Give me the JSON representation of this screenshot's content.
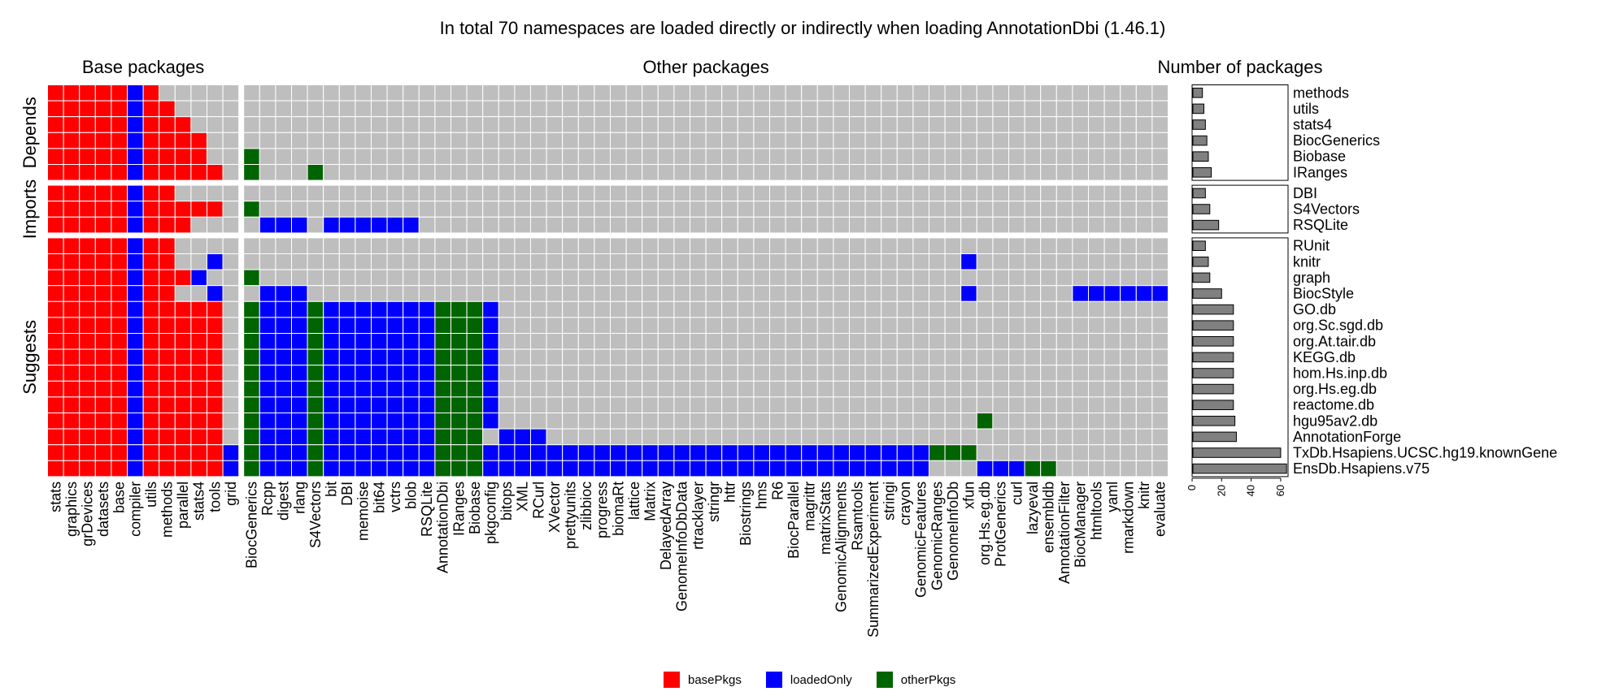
{
  "chart_data": {
    "type": "heatmap",
    "title": "In total 70 namespaces are loaded directly or indirectly when loading AnnotationDbi (1.46.1)",
    "panel_titles": {
      "base": "Base packages",
      "other": "Other packages",
      "bar": "Number of packages"
    },
    "groups": [
      {
        "name": "Depends",
        "rows": [
          "methods",
          "utils",
          "stats4",
          "BiocGenerics",
          "Biobase",
          "IRanges"
        ]
      },
      {
        "name": "Imports",
        "rows": [
          "DBI",
          "S4Vectors",
          "RSQLite"
        ]
      },
      {
        "name": "Suggests",
        "rows": [
          "RUnit",
          "knitr",
          "graph",
          "BiocStyle",
          "GO.db",
          "org.Sc.sgd.db",
          "org.At.tair.db",
          "KEGG.db",
          "hom.Hs.inp.db",
          "org.Hs.eg.db",
          "reactome.db",
          "hgu95av2.db",
          "AnnotationForge",
          "TxDb.Hsapiens.UCSC.hg19.knownGene",
          "EnsDb.Hsapiens.v75"
        ]
      }
    ],
    "base_columns": [
      "stats",
      "graphics",
      "grDevices",
      "datasets",
      "base",
      "compiler",
      "utils",
      "methods",
      "parallel",
      "stats4",
      "tools",
      "grid"
    ],
    "other_columns": [
      "BiocGenerics",
      "Rcpp",
      "digest",
      "rlang",
      "S4Vectors",
      "bit",
      "DBI",
      "memoise",
      "bit64",
      "vctrs",
      "blob",
      "RSQLite",
      "AnnotationDbi",
      "IRanges",
      "Biobase",
      "pkgconfig",
      "bitops",
      "XML",
      "RCurl",
      "XVector",
      "prettyunits",
      "zlibbioc",
      "progress",
      "biomaRt",
      "lattice",
      "Matrix",
      "DelayedArray",
      "GenomeInfoDbData",
      "rtracklayer",
      "stringr",
      "httr",
      "Biostrings",
      "hms",
      "R6",
      "BiocParallel",
      "magrittr",
      "matrixStats",
      "GenomicAlignments",
      "Rsamtools",
      "SummarizedExperiment",
      "stringi",
      "crayon",
      "GenomicFeatures",
      "GenomicRanges",
      "GenomeInfoDb",
      "xfun",
      "org.Hs.eg.db",
      "ProtGenerics",
      "curl",
      "lazyeval",
      "ensembldb",
      "AnnotationFilter",
      "BiocManager",
      "htmltools",
      "yaml",
      "rmarkdown",
      "knitr",
      "evaluate"
    ],
    "cell_legend": {
      "B": "basePkgs",
      "L": "loadedOnly",
      "O": "otherPkgs",
      "-": "not loaded"
    },
    "base_matrix": [
      "BBBBBLB-----",
      "BBBBBLBB----",
      "BBBBBLBBB---",
      "BBBBBLBBBB--",
      "BBBBBLBBBB--",
      "BBBBBLBBBBB-",
      "BBBBBLBB----",
      "BBBBBLBBBBB-",
      "BBBBBLBBB---",
      "BBBBBLBB----",
      "BBBBBLBB--L-",
      "BBBBBLBBBL--",
      "BBBBBLBB--L-",
      "BBBBBLBBBBB-",
      "BBBBBLBBBBB-",
      "BBBBBLBBBBB-",
      "BBBBBLBBBBB-",
      "BBBBBLBBBBB-",
      "BBBBBLBBBBB-",
      "BBBBBLBBBBB-",
      "BBBBBLBBBBB-",
      "BBBBBLBBBBB-",
      "BBBBBLBBBBBL",
      "BBBBBLBBBBBL"
    ],
    "other_matrix": [
      "----------------------------------------------------------",
      "----------------------------------------------------------",
      "----------------------------------------------------------",
      "----------------------------------------------------------",
      "O---------------------------------------------------------",
      "O---O-----------------------------------------------------",
      "----------------------------------------------------------",
      "O---------------------------------------------------------",
      "-LLL-LLLLLL-----------------------------------------------",
      "----------------------------------------------------------",
      "---------------------------------------------L------------",
      "O---------------------------------------------------------",
      "-LLL-----------------------------------------L------LLLLLL",
      "OLLLOLLLLLLLOOOL------------------------------------------",
      "OLLLOLLLLLLLOOOL------------------------------------------",
      "OLLLOLLLLLLLOOOL------------------------------------------",
      "OLLLOLLLLLLLOOOL------------------------------------------",
      "OLLLOLLLLLLLOOOL------------------------------------------",
      "OLLLOLLLLLLLOOOL------------------------------------------",
      "OLLLOLLLLLLLOOOL------------------------------------------",
      "OLLLOLLLLLLLOOOL------------------------------O-----------",
      "OLLLOLLLLLLLOOO-LLL---------------------------------------",
      "OLLLOLLLLLLLOOOLLLLLLLLLLLLLLLLLLLLLLLLLLLLOOO------------",
      "OLLLOLLLLLLLOOOLLLLLLLLLLLLLLLLLLLLLLLLLLLL---LLLOO-------"
    ],
    "bar_values": [
      7,
      8,
      9,
      10,
      11,
      13,
      9,
      12,
      18,
      9,
      11,
      12,
      20,
      28,
      28,
      28,
      28,
      28,
      28,
      28,
      29,
      30,
      60,
      64
    ],
    "bar_axis": {
      "ticks": [
        0,
        20,
        40,
        60
      ],
      "range": [
        0,
        65
      ]
    },
    "colors": {
      "B": "#FF0000",
      "L": "#0000FF",
      "O": "#006400",
      "-": "#BEBEBE",
      "bar_fill": "#808080",
      "bar_stroke": "#000000"
    }
  }
}
